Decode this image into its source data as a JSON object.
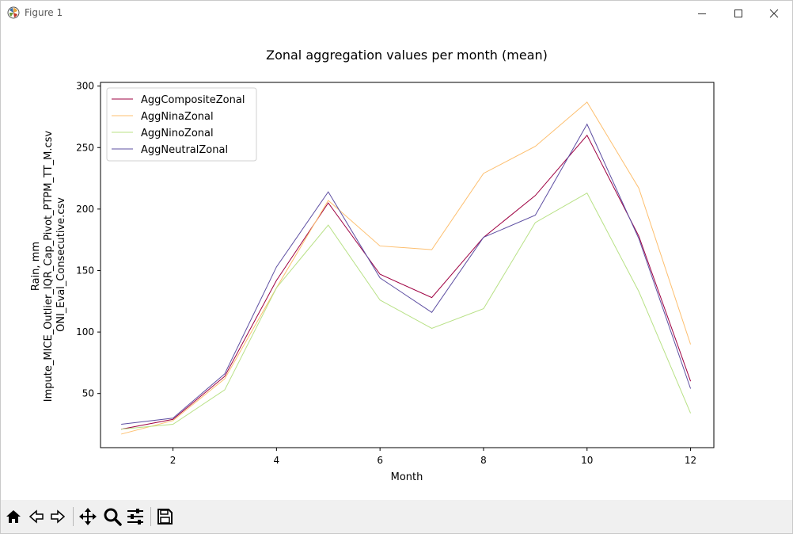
{
  "window": {
    "title": "Figure 1",
    "buttons": [
      "minimize",
      "maximize",
      "close"
    ]
  },
  "toolbar": {
    "tools": [
      "home-icon",
      "back-arrow-icon",
      "forward-arrow-icon",
      "pan-icon",
      "zoom-icon",
      "configure-subplots-icon",
      "save-icon"
    ]
  },
  "chart_data": {
    "type": "line",
    "title": "Zonal aggregation values per month (mean)",
    "xlabel": "Month",
    "ylabel_lines": [
      "Rain, mm",
      "Impute_MICE_Outlier_IQR_Cap_Pivot_PTPM_TT_M.csv",
      "ONI_Eval_Consecutive.csv"
    ],
    "x": [
      1,
      2,
      3,
      4,
      5,
      6,
      7,
      8,
      9,
      10,
      11,
      12
    ],
    "xlim": [
      0.6,
      12.45
    ],
    "ylim": [
      6,
      303
    ],
    "xticks": [
      2,
      4,
      6,
      8,
      10,
      12
    ],
    "yticks": [
      50,
      100,
      150,
      200,
      250,
      300
    ],
    "grid": false,
    "legend_position": "top-left",
    "series": [
      {
        "name": "AggCompositeZonal",
        "color": "#9e0142",
        "values": [
          21,
          29,
          64,
          142,
          205,
          147,
          128,
          177,
          211,
          260,
          178,
          60
        ]
      },
      {
        "name": "AggNinaZonal",
        "color": "#fdbf6f",
        "values": [
          17,
          28,
          62,
          136,
          207,
          170,
          167,
          229,
          251,
          287,
          217,
          90
        ]
      },
      {
        "name": "AggNinoZonal",
        "color": "#b8e186",
        "values": [
          21,
          25,
          53,
          136,
          187,
          126,
          103,
          119,
          189,
          213,
          133,
          34
        ]
      },
      {
        "name": "AggNeutralZonal",
        "color": "#5e4fa2",
        "values": [
          25,
          30,
          66,
          153,
          214,
          144,
          116,
          177,
          195,
          269,
          176,
          54
        ]
      }
    ]
  }
}
